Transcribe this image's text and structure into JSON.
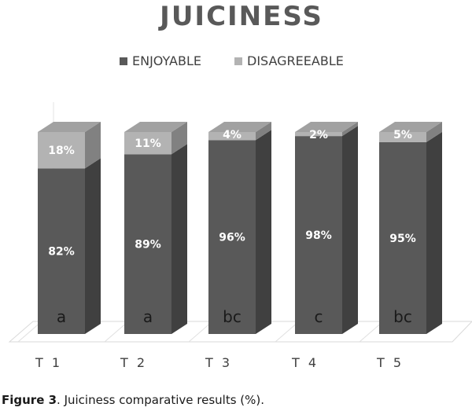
{
  "chart_data": {
    "type": "bar",
    "stacked": true,
    "style": "3d-column",
    "title": "JUICINESS",
    "categories": [
      "T 1",
      "T 2",
      "T 3",
      "T 4",
      "T 5"
    ],
    "series": [
      {
        "name": "ENJOYABLE",
        "values": [
          82,
          89,
          96,
          98,
          95
        ],
        "labels": [
          "82%",
          "89%",
          "96%",
          "98%",
          "95%"
        ],
        "color": "#595959"
      },
      {
        "name": "DISAGREEABLE",
        "values": [
          18,
          11,
          4,
          2,
          5
        ],
        "labels": [
          "18%",
          "11%",
          "4%",
          "2%",
          "5%"
        ],
        "color": "#b3b3b3"
      }
    ],
    "group_letters": [
      "a",
      "a",
      "bc",
      "c",
      "bc"
    ],
    "ylim": [
      0,
      100
    ],
    "legend_position": "top",
    "grid": false
  },
  "caption": {
    "label": "Figure 3",
    "text": ". Juiciness comparative results (%)."
  }
}
